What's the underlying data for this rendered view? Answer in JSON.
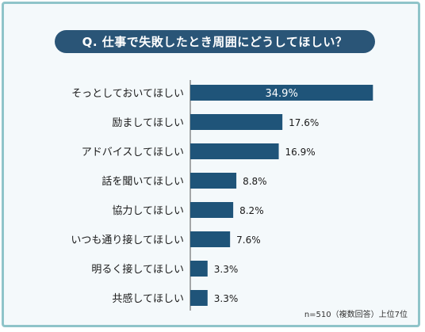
{
  "question": "Q. 仕事で失敗したとき周囲にどうしてほしい？",
  "note": "n=510（複数回答）上位7位",
  "colors": {
    "bar": "#1f5479",
    "pill": "#2a5577",
    "frame": "#8fc4c9",
    "bg": "#f4f9fb"
  },
  "chart_data": {
    "type": "bar",
    "orientation": "horizontal",
    "title": "Q. 仕事で失敗したとき周囲にどうしてほしい？",
    "categories": [
      "そっとしておいてほしい",
      "励ましてほしい",
      "アドバイスしてほしい",
      "話を聞いてほしい",
      "協力してほしい",
      "いつも通り接してほしい",
      "明るく接してほしい",
      "共感してほしい"
    ],
    "values": [
      34.9,
      17.6,
      16.9,
      8.8,
      8.2,
      7.6,
      3.3,
      3.3
    ],
    "labels": [
      "34.9%",
      "17.6%",
      "16.9%",
      "8.8%",
      "8.2%",
      "7.6%",
      "3.3%",
      "3.3%"
    ],
    "unit": "%",
    "xlim": [
      0,
      35
    ]
  }
}
